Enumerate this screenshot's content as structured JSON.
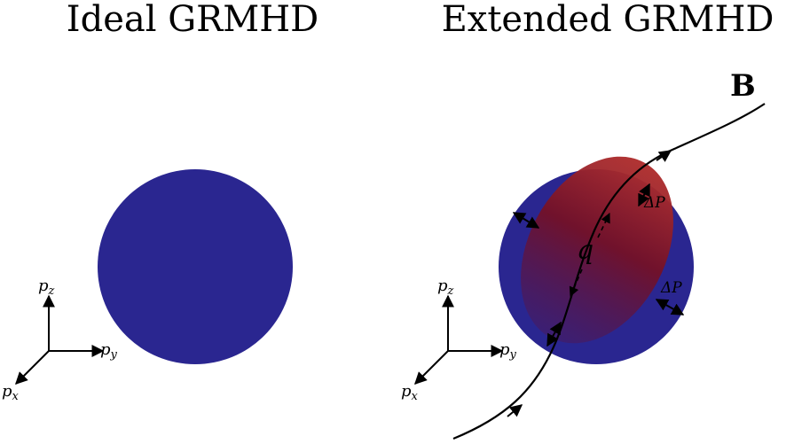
{
  "panels": [
    {
      "title": "Ideal GRMHD",
      "axes": {
        "z": "p",
        "z_sub": "z",
        "y": "p",
        "y_sub": "y",
        "x": "p",
        "x_sub": "x"
      }
    },
    {
      "title": "Extended GRMHD",
      "axes": {
        "z": "p",
        "z_sub": "z",
        "y": "p",
        "y_sub": "y",
        "x": "p",
        "x_sub": "x"
      },
      "field_label": "B",
      "heat_flux_label": "q",
      "pressure_anisotropy_label_1": "ΔP",
      "pressure_anisotropy_label_2": "ΔP"
    }
  ],
  "colors": {
    "sphere": "#2a2690",
    "ellipsoid_light": "#b03030",
    "ellipsoid_dark": "#7a0f1e",
    "lines": "#000000"
  }
}
